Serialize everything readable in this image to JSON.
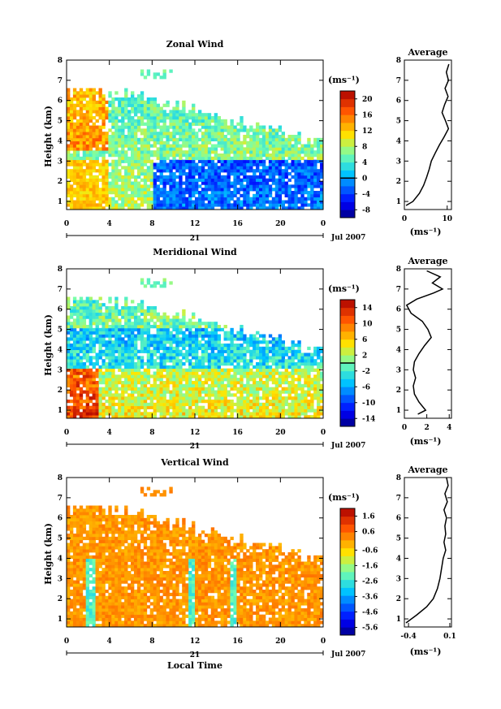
{
  "chart_data": [
    {
      "type": "heatmap",
      "title": "Zonal Wind",
      "xlabel": "",
      "ylabel": "Height (km)",
      "x_ticks": [
        "0",
        "4",
        "8",
        "12",
        "16",
        "20",
        "0"
      ],
      "y_ticks": [
        "1",
        "2",
        "3",
        "4",
        "5",
        "6",
        "7",
        "8"
      ],
      "xlim": [
        0,
        24
      ],
      "ylim": [
        0.6,
        8
      ],
      "date_axis": {
        "day": "21",
        "month_year": "Jul 2007"
      },
      "colorbar": {
        "unit": "(ms⁻¹)",
        "ticks": [
          -8,
          -4,
          0,
          4,
          8,
          12,
          16,
          20
        ],
        "range": [
          -10,
          22
        ],
        "zero_line": 0
      },
      "average_profile": {
        "title": "Average",
        "xlabel": "(ms⁻¹)",
        "x_ticks": [
          "0",
          "10"
        ],
        "xlim": [
          0,
          11
        ],
        "points": [
          [
            0.4,
            0.8
          ],
          [
            2,
            1.0
          ],
          [
            3.5,
            1.4
          ],
          [
            4.5,
            1.8
          ],
          [
            5.2,
            2.2
          ],
          [
            5.8,
            2.6
          ],
          [
            6.3,
            3.0
          ],
          [
            7.2,
            3.4
          ],
          [
            8.2,
            3.8
          ],
          [
            9.3,
            4.2
          ],
          [
            10.3,
            4.6
          ],
          [
            9.6,
            5.0
          ],
          [
            8.8,
            5.4
          ],
          [
            9.4,
            5.8
          ],
          [
            10.2,
            6.2
          ],
          [
            9.5,
            6.6
          ],
          [
            10.3,
            7.0
          ],
          [
            9.8,
            7.4
          ],
          [
            10.4,
            7.8
          ]
        ]
      }
    },
    {
      "type": "heatmap",
      "title": "Meridional Wind",
      "xlabel": "",
      "ylabel": "Height (km)",
      "x_ticks": [
        "0",
        "4",
        "8",
        "12",
        "16",
        "20",
        "0"
      ],
      "y_ticks": [
        "1",
        "2",
        "3",
        "4",
        "5",
        "6",
        "7",
        "8"
      ],
      "xlim": [
        0,
        24
      ],
      "ylim": [
        0.6,
        8
      ],
      "date_axis": {
        "day": "21",
        "month_year": "Jul 2007"
      },
      "colorbar": {
        "unit": "(ms⁻¹)",
        "ticks": [
          -14,
          -10,
          -6,
          -2,
          2,
          6,
          10,
          14
        ],
        "range": [
          -16,
          16
        ],
        "zero_line": 0
      },
      "average_profile": {
        "title": "Average",
        "xlabel": "(ms⁻¹)",
        "x_ticks": [
          "0",
          "2",
          "4"
        ],
        "xlim": [
          0,
          4.2
        ],
        "points": [
          [
            1.2,
            0.8
          ],
          [
            1.9,
            1.0
          ],
          [
            1.3,
            1.4
          ],
          [
            0.9,
            1.8
          ],
          [
            0.8,
            2.2
          ],
          [
            1.0,
            2.6
          ],
          [
            0.8,
            3.0
          ],
          [
            0.9,
            3.4
          ],
          [
            1.3,
            3.8
          ],
          [
            1.8,
            4.2
          ],
          [
            2.4,
            4.6
          ],
          [
            2.1,
            5.0
          ],
          [
            1.6,
            5.4
          ],
          [
            0.6,
            5.8
          ],
          [
            0.2,
            6.2
          ],
          [
            1.1,
            6.5
          ],
          [
            2.6,
            6.8
          ],
          [
            3.4,
            7.0
          ],
          [
            2.5,
            7.3
          ],
          [
            3.2,
            7.6
          ],
          [
            2.0,
            7.9
          ]
        ]
      }
    },
    {
      "type": "heatmap",
      "title": "Vertical Wind",
      "xlabel": "Local Time",
      "ylabel": "Height (km)",
      "x_ticks": [
        "0",
        "4",
        "8",
        "12",
        "16",
        "20",
        "0"
      ],
      "y_ticks": [
        "1",
        "2",
        "3",
        "4",
        "5",
        "6",
        "7",
        "8"
      ],
      "xlim": [
        0,
        24
      ],
      "ylim": [
        0.6,
        8
      ],
      "date_axis": {
        "day": "21",
        "month_year": "Jul 2007"
      },
      "colorbar": {
        "unit": "(ms⁻¹)",
        "ticks": [
          -5.6,
          -4.6,
          -3.6,
          -2.6,
          -1.6,
          -0.6,
          0.6,
          1.6
        ],
        "range": [
          -6.1,
          2.1
        ],
        "zero_line": null
      },
      "average_profile": {
        "title": "Average",
        "xlabel": "(ms⁻¹)",
        "x_ticks": [
          "-0.4",
          "0.1"
        ],
        "xlim": [
          -0.45,
          0.12
        ],
        "points": [
          [
            -0.43,
            0.8
          ],
          [
            -0.3,
            1.2
          ],
          [
            -0.18,
            1.6
          ],
          [
            -0.1,
            2.0
          ],
          [
            -0.05,
            2.5
          ],
          [
            -0.02,
            3.0
          ],
          [
            0.0,
            3.5
          ],
          [
            0.02,
            4.0
          ],
          [
            0.05,
            4.4
          ],
          [
            0.03,
            4.8
          ],
          [
            0.05,
            5.2
          ],
          [
            0.04,
            5.6
          ],
          [
            0.06,
            6.0
          ],
          [
            0.03,
            6.4
          ],
          [
            0.07,
            6.8
          ],
          [
            0.04,
            7.2
          ],
          [
            0.08,
            7.6
          ],
          [
            0.06,
            8.0
          ]
        ]
      }
    }
  ]
}
